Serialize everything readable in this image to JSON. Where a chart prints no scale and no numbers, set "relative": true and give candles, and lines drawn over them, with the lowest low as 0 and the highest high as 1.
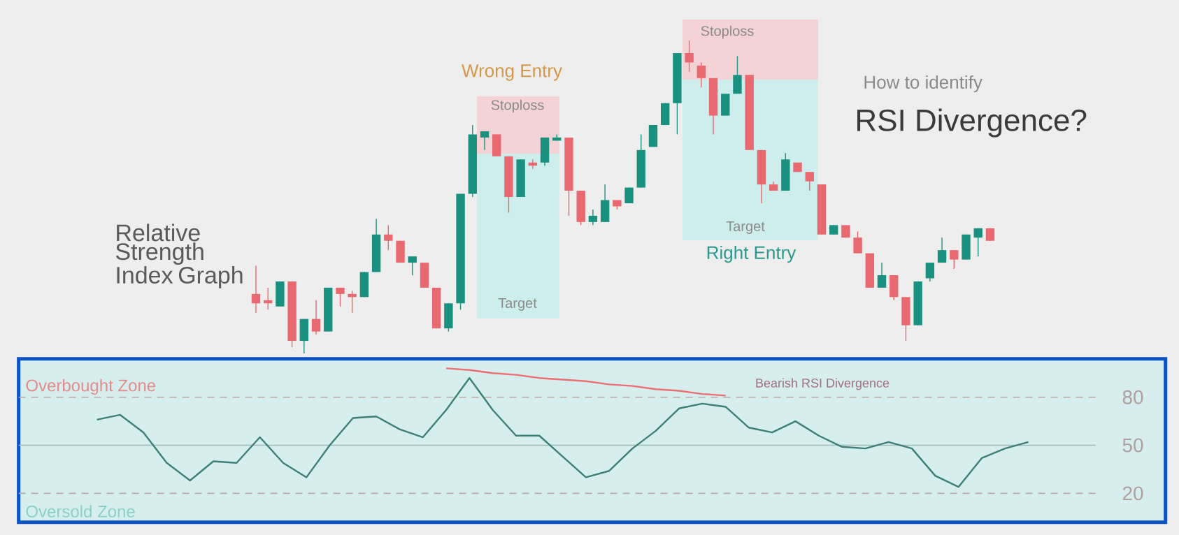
{
  "chart_data": [
    {
      "type": "candlestick",
      "relative": true,
      "categories": [
        null,
        null,
        null,
        null,
        null,
        null,
        null,
        null,
        null,
        null,
        null,
        null,
        null,
        null,
        null,
        null,
        null,
        null,
        null,
        null,
        null,
        null,
        null,
        null,
        null,
        null,
        null,
        null,
        null,
        null,
        null,
        null,
        null,
        null,
        null,
        null,
        null,
        null,
        null,
        null,
        null,
        null,
        null,
        null,
        null,
        null,
        null,
        null,
        null,
        null,
        null,
        null,
        null,
        null,
        null,
        null,
        null,
        null,
        null,
        null,
        null,
        null
      ],
      "ohlc": [
        [
          0.19,
          0.28,
          0.13,
          0.16
        ],
        [
          0.17,
          0.21,
          0.14,
          0.16
        ],
        [
          0.15,
          0.23,
          0.15,
          0.23
        ],
        [
          0.23,
          0.23,
          0.02,
          0.04
        ],
        [
          0.04,
          0.11,
          0,
          0.11
        ],
        [
          0.11,
          0.17,
          0.06,
          0.07
        ],
        [
          0.07,
          0.21,
          0.07,
          0.21
        ],
        [
          0.21,
          0.21,
          0.15,
          0.19
        ],
        [
          0.19,
          0.2,
          0.13,
          0.18
        ],
        [
          0.18,
          0.26,
          0.18,
          0.26
        ],
        [
          0.26,
          0.43,
          0.26,
          0.38
        ],
        [
          0.38,
          0.41,
          0.33,
          0.36
        ],
        [
          0.36,
          0.36,
          0.29,
          0.29
        ],
        [
          0.29,
          0.31,
          0.25,
          0.31
        ],
        [
          0.29,
          0.29,
          0.21,
          0.21
        ],
        [
          0.21,
          0.21,
          0.08,
          0.08
        ],
        [
          0.08,
          0.16,
          0.07,
          0.16
        ],
        [
          0.16,
          0.51,
          0.14,
          0.51
        ],
        [
          0.51,
          0.73,
          0.5,
          0.7
        ],
        [
          0.69,
          0.71,
          0.65,
          0.71
        ],
        [
          0.7,
          0.7,
          0.63,
          0.63
        ],
        [
          0.63,
          0.63,
          0.45,
          0.5
        ],
        [
          0.5,
          0.62,
          0.5,
          0.62
        ],
        [
          0.61,
          0.62,
          0.59,
          0.6
        ],
        [
          0.61,
          0.69,
          0.6,
          0.69
        ],
        [
          0.68,
          0.7,
          0.68,
          0.69
        ],
        [
          0.69,
          0.69,
          0.44,
          0.52
        ],
        [
          0.52,
          0.52,
          0.41,
          0.42
        ],
        [
          0.42,
          0.46,
          0.41,
          0.44
        ],
        [
          0.42,
          0.54,
          0.42,
          0.49
        ],
        [
          0.49,
          0.49,
          0.46,
          0.47
        ],
        [
          0.48,
          0.53,
          0.48,
          0.53
        ],
        [
          0.53,
          0.7,
          0.53,
          0.65
        ],
        [
          0.66,
          0.73,
          0.66,
          0.73
        ],
        [
          0.73,
          0.8,
          0.73,
          0.8
        ],
        [
          0.8,
          0.96,
          0.7,
          0.96
        ],
        [
          0.96,
          1,
          0.9,
          0.93
        ],
        [
          0.92,
          0.93,
          0.85,
          0.88
        ],
        [
          0.88,
          0.88,
          0.7,
          0.76
        ],
        [
          0.76,
          0.83,
          0.76,
          0.83
        ],
        [
          0.83,
          0.95,
          0.83,
          0.89
        ],
        [
          0.89,
          0.89,
          0.65,
          0.65
        ],
        [
          0.65,
          0.65,
          0.48,
          0.54
        ],
        [
          0.54,
          0.55,
          0.52,
          0.52
        ],
        [
          0.52,
          0.64,
          0.52,
          0.62
        ],
        [
          0.61,
          0.61,
          0.58,
          0.58
        ],
        [
          0.58,
          0.58,
          0.52,
          0.55
        ],
        [
          0.54,
          0.54,
          0.38,
          0.38
        ],
        [
          0.38,
          0.41,
          0.38,
          0.41
        ],
        [
          0.41,
          0.41,
          0.37,
          0.37
        ],
        [
          0.37,
          0.39,
          0.32,
          0.32
        ],
        [
          0.32,
          0.32,
          0.21,
          0.21
        ],
        [
          0.21,
          0.29,
          0.21,
          0.25
        ],
        [
          0.25,
          0.25,
          0.17,
          0.18
        ],
        [
          0.18,
          0.18,
          0.04,
          0.09
        ],
        [
          0.09,
          0.23,
          0.09,
          0.23
        ],
        [
          0.24,
          0.29,
          0.23,
          0.29
        ],
        [
          0.29,
          0.37,
          0.29,
          0.33
        ],
        [
          0.33,
          0.33,
          0.27,
          0.3
        ],
        [
          0.3,
          0.38,
          0.3,
          0.38
        ],
        [
          0.37,
          0.4,
          0.31,
          0.4
        ],
        [
          0.4,
          0.4,
          0.36,
          0.36
        ]
      ],
      "annotations": [
        "Relative Strength Index Graph",
        "How to identify",
        "RSI Divergence?",
        "Wrong Entry",
        "Stoploss",
        "Target",
        "Stoploss",
        "Target",
        "Right Entry"
      ]
    },
    {
      "type": "line",
      "categories": [
        null,
        null,
        null,
        null,
        null,
        null,
        null,
        null,
        null,
        null,
        null,
        null,
        null,
        null,
        null,
        null,
        null,
        null,
        null,
        null,
        null,
        null,
        null,
        null,
        null,
        null,
        null,
        null,
        null,
        null,
        null,
        null,
        null,
        null,
        null,
        null,
        null,
        null,
        null,
        null,
        null
      ],
      "ylim": [
        2,
        104
      ],
      "yticks": [
        80,
        50,
        20
      ],
      "series": [
        {
          "color": "#3f7f78",
          "values": [
            66,
            69,
            58,
            39,
            28,
            40,
            39,
            55,
            39,
            30,
            50,
            67,
            68,
            60,
            55,
            72,
            92,
            72,
            56,
            56,
            43,
            30,
            34,
            48,
            59,
            73,
            76,
            74,
            61,
            58,
            65,
            56,
            49,
            48,
            52,
            48,
            31,
            24,
            42,
            48,
            52
          ]
        },
        {
          "color": "#ec6f73",
          "values": [
            null,
            null,
            null,
            null,
            null,
            null,
            null,
            null,
            null,
            null,
            null,
            null,
            null,
            null,
            null,
            98,
            97,
            95,
            94,
            92,
            91,
            90,
            88,
            87,
            85,
            84,
            82,
            81,
            null,
            null,
            null,
            null,
            null,
            null,
            null,
            null,
            null,
            null,
            null,
            null,
            null
          ]
        }
      ],
      "ref_lines": [
        {
          "axis": "y",
          "value": 80,
          "color": "#b8a8a8",
          "line_style": "dashed"
        },
        {
          "axis": "y",
          "value": 50,
          "color": "#9fbdb9",
          "line_style": "solid"
        },
        {
          "axis": "y",
          "value": 20,
          "color": "#b8a8a8",
          "line_style": "dashed"
        }
      ],
      "annotations": [
        "Overbought Zone",
        "Bearish RSI Divergence",
        "Oversold Zone"
      ]
    }
  ]
}
